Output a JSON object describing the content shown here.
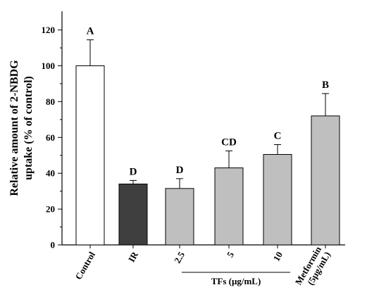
{
  "chart_data": {
    "type": "bar",
    "ylabel_lines": [
      "Relative amount of 2-NBDG",
      "uptake (% of control)"
    ],
    "ylim": [
      0,
      130
    ],
    "yticks": [
      0,
      20,
      40,
      60,
      80,
      100,
      120
    ],
    "categories": [
      {
        "lines": [
          "Control"
        ]
      },
      {
        "lines": [
          "IR"
        ]
      },
      {
        "lines": [
          "2.5"
        ]
      },
      {
        "lines": [
          "5"
        ]
      },
      {
        "lines": [
          "10"
        ]
      },
      {
        "lines": [
          "Metformin",
          "(5μg/mL)"
        ]
      }
    ],
    "values": [
      100,
      34,
      31.5,
      43,
      50.5,
      72
    ],
    "errors": [
      14.5,
      2,
      5.5,
      9.5,
      5.5,
      12.5
    ],
    "significance": [
      "A",
      "D",
      "D",
      "CD",
      "C",
      "B"
    ],
    "bar_colors": [
      "#ffffff",
      "#3f3f3f",
      "#bfbfbf",
      "#bfbfbf",
      "#bfbfbf",
      "#bfbfbf"
    ],
    "group_label": "TFs (μg/mL)",
    "group_span": [
      2,
      4
    ],
    "grid": false,
    "legend": "none"
  }
}
